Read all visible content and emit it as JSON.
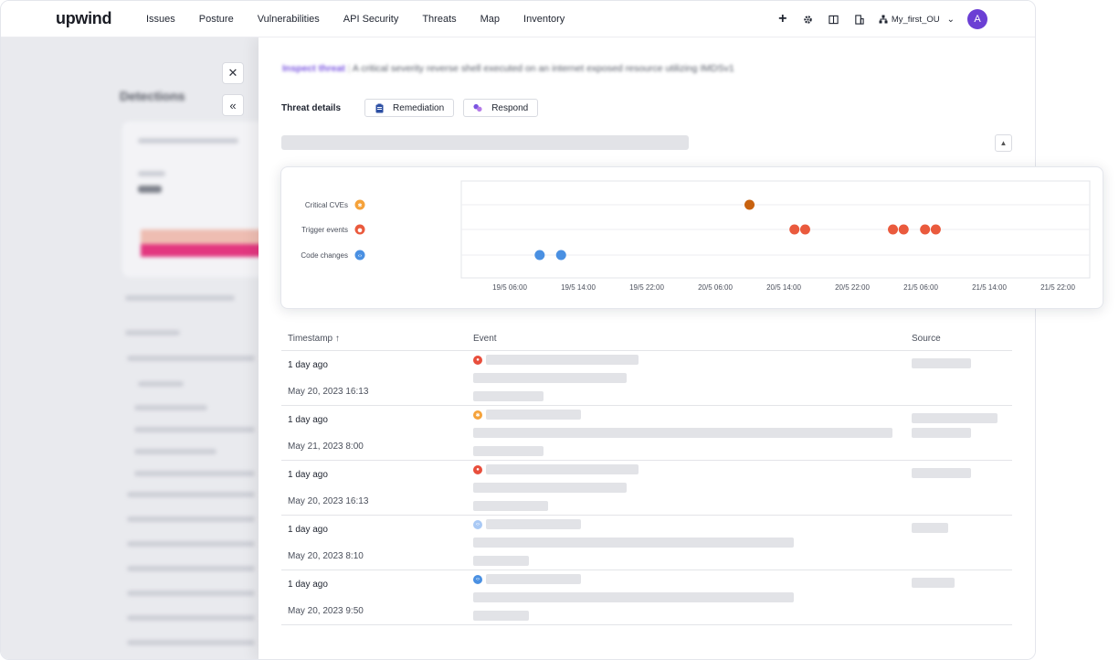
{
  "nav": {
    "logo": "upwind",
    "items": [
      "Issues",
      "Posture",
      "Vulnerabilities",
      "API Security",
      "Threats",
      "Map",
      "Inventory"
    ],
    "ou_label": "My_first_OU",
    "avatar_letter": "A"
  },
  "background": {
    "title": "Detections"
  },
  "drawer": {
    "headline_tag": "Inspect threat",
    "headline_text": "A critical severity reverse shell executed on an internet exposed resource utilizing IMDSv1",
    "tabs": {
      "active": "Threat details",
      "remediation": "Remediation",
      "respond": "Respond"
    }
  },
  "chart_data": {
    "type": "scatter",
    "categories": [
      "Critical CVEs",
      "Trigger events",
      "Code changes"
    ],
    "x_ticks": [
      "19/5 06:00",
      "19/5 14:00",
      "19/5 22:00",
      "20/5 06:00",
      "20/5 14:00",
      "20/5 22:00",
      "21/5 06:00",
      "21/5 14:00",
      "21/5 22:00"
    ],
    "series": [
      {
        "name": "Critical CVEs",
        "color": "#c8620f",
        "points": [
          "20/5 10:00"
        ]
      },
      {
        "name": "Trigger events",
        "color": "#ea5a3d",
        "points": [
          "20/5 15:15",
          "20/5 16:30",
          "21/5 02:45",
          "21/5 04:00",
          "21/5 06:30",
          "21/5 07:45"
        ]
      },
      {
        "name": "Code changes",
        "color": "#4a90e2",
        "points": [
          "19/5 09:30",
          "19/5 12:00"
        ]
      }
    ],
    "grid": true
  },
  "table": {
    "headers": {
      "timestamp": "Timestamp ↑",
      "event": "Event",
      "source": "Source"
    },
    "rows": [
      {
        "relative": "1 day ago",
        "absolute": "May 20, 2023 16:13",
        "icon_color": "#e84e3c"
      },
      {
        "relative": "1 day ago",
        "absolute": "May 21, 2023 8:00",
        "icon_color": "#f5a23a"
      },
      {
        "relative": "1 day ago",
        "absolute": "May 20, 2023 16:13",
        "icon_color": "#e84e3c"
      },
      {
        "relative": "1 day ago",
        "absolute": "May 20, 2023 8:10",
        "icon_color": "#a9c9f5"
      },
      {
        "relative": "1 day ago",
        "absolute": "May 20, 2023 9:50",
        "icon_color": "#4a90e2"
      }
    ]
  }
}
